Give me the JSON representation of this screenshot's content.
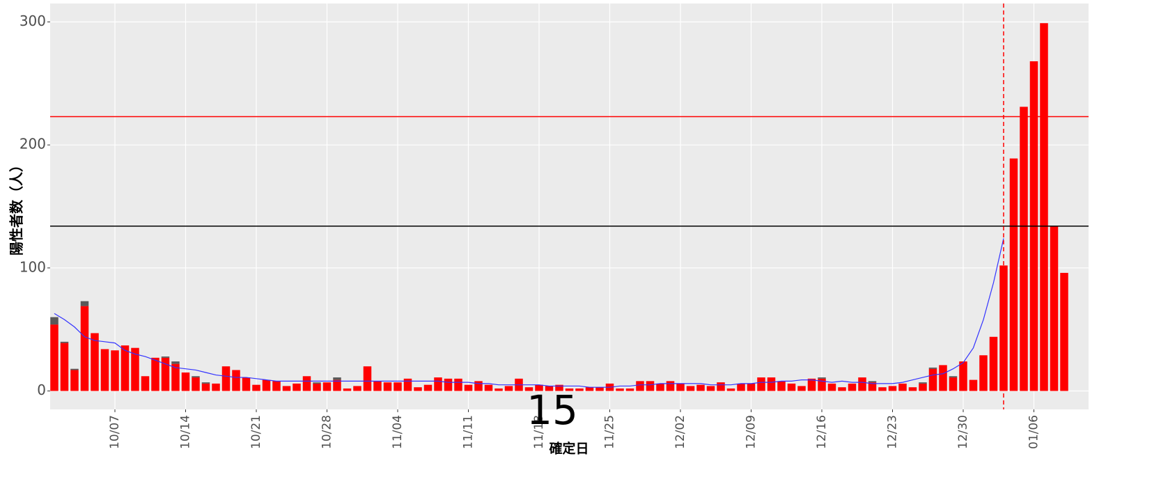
{
  "chart_data": {
    "type": "bar",
    "stacked": true,
    "y_label": "陽性者数（人）",
    "x_label": "確定日",
    "annotation": "15",
    "categories": [
      null,
      null,
      null,
      null,
      null,
      null,
      "10/07",
      null,
      null,
      null,
      null,
      null,
      null,
      "10/14",
      null,
      null,
      null,
      null,
      null,
      null,
      "10/21",
      null,
      null,
      null,
      null,
      null,
      null,
      "10/28",
      null,
      null,
      null,
      null,
      null,
      null,
      "11/04",
      null,
      null,
      null,
      null,
      null,
      null,
      "11/11",
      null,
      null,
      null,
      null,
      null,
      null,
      "11/18",
      null,
      null,
      null,
      null,
      null,
      null,
      "11/25",
      null,
      null,
      null,
      null,
      null,
      null,
      "12/02",
      null,
      null,
      null,
      null,
      null,
      null,
      "12/09",
      null,
      null,
      null,
      null,
      null,
      null,
      "12/16",
      null,
      null,
      null,
      null,
      null,
      null,
      "12/23",
      null,
      null,
      null,
      null,
      null,
      null,
      "12/30",
      null,
      null,
      null,
      null,
      null,
      null,
      "01/06",
      null,
      null,
      null
    ],
    "series": [
      {
        "color": "#ff0000",
        "values": [
          54,
          39,
          17,
          69,
          47,
          34,
          33,
          37,
          35,
          12,
          27,
          27,
          22,
          15,
          11,
          6,
          6,
          20,
          17,
          11,
          5,
          9,
          8,
          4,
          6,
          12,
          6,
          7,
          9,
          2,
          4,
          20,
          8,
          7,
          7,
          10,
          3,
          5,
          11,
          10,
          10,
          5,
          8,
          5,
          2,
          4,
          10,
          3,
          5,
          4,
          5,
          2,
          2,
          3,
          3,
          6,
          2,
          2,
          8,
          8,
          6,
          8,
          6,
          4,
          5,
          4,
          7,
          2,
          6,
          6,
          11,
          11,
          8,
          6,
          4,
          10,
          10,
          6,
          3,
          6,
          11,
          7,
          3,
          4,
          6,
          3,
          6,
          18,
          21,
          11,
          24,
          9,
          29,
          44,
          102,
          189,
          231,
          268,
          299,
          134,
          96
        ]
      },
      {
        "color": "#595959",
        "values": [
          6,
          1,
          1,
          4,
          0,
          0,
          0,
          0,
          0,
          0,
          0,
          1,
          2,
          0,
          1,
          1,
          0,
          0,
          0,
          0,
          0,
          0,
          0,
          0,
          0,
          0,
          1,
          0,
          2,
          0,
          0,
          0,
          0,
          0,
          0,
          0,
          0,
          0,
          0,
          0,
          0,
          0,
          0,
          0,
          0,
          0,
          0,
          0,
          0,
          0,
          0,
          0,
          0,
          0,
          0,
          0,
          0,
          0,
          0,
          0,
          0,
          0,
          0,
          0,
          0,
          0,
          0,
          0,
          0,
          0,
          0,
          0,
          0,
          0,
          0,
          0,
          1,
          0,
          0,
          0,
          0,
          1,
          0,
          0,
          0,
          0,
          1,
          1,
          0,
          1,
          0,
          0,
          0,
          0,
          0,
          0,
          0,
          0,
          0,
          0,
          0
        ]
      }
    ],
    "moving_average": {
      "color": "#3333ff",
      "values": [
        63,
        58,
        52,
        44,
        41,
        40,
        39,
        33,
        30,
        28,
        25,
        22,
        19,
        18,
        17,
        15,
        13,
        12,
        11,
        11,
        10,
        9,
        8,
        8,
        8,
        8,
        8,
        8,
        8,
        8,
        8,
        8,
        8,
        8,
        8,
        8,
        8,
        8,
        8,
        7,
        7,
        7,
        6,
        6,
        5,
        5,
        5,
        5,
        5,
        4,
        4,
        4,
        4,
        3,
        3,
        3,
        4,
        4,
        5,
        5,
        6,
        6,
        6,
        6,
        6,
        5,
        5,
        5,
        6,
        6,
        7,
        7,
        8,
        8,
        9,
        9,
        8,
        7,
        8,
        7,
        7,
        6,
        6,
        6,
        7,
        9,
        11,
        13,
        14,
        18,
        23,
        35,
        58,
        88,
        124,
        null,
        null,
        null,
        null,
        null,
        null
      ]
    },
    "hlines": [
      {
        "value": 223,
        "color": "#ff0000"
      },
      {
        "value": 134,
        "color": "#000000"
      }
    ],
    "vline_x": 94,
    "vline_color": "#ff0000",
    "ylim": [
      -15,
      315
    ],
    "yticks": [
      0,
      100,
      200,
      300
    ],
    "grid": true
  }
}
